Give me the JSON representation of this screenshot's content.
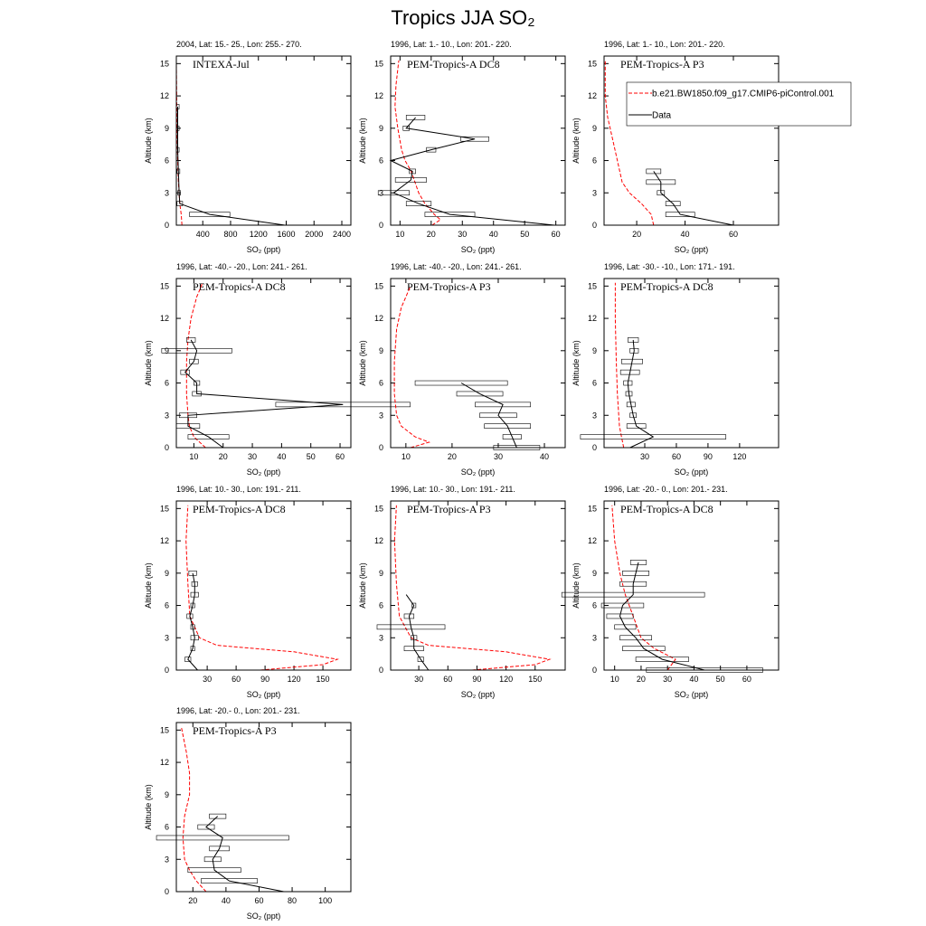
{
  "title": "Tropics JJA SO₂",
  "chart_data": [
    {
      "type": "line",
      "title": "2004, Lat: 15.- 25., Lon: 255.- 270.",
      "annotation": "INTEXA-Jul",
      "xlabel": "SO₂ (ppt)",
      "ylabel": "Altitude (km)",
      "xlim": [
        20,
        2530
      ],
      "xticks": [
        400,
        800,
        1200,
        1600,
        2000,
        2400
      ],
      "ylim": [
        0,
        15.7
      ],
      "yticks": [
        0,
        3,
        6,
        9,
        12,
        15
      ],
      "series": [
        {
          "color": "#ff0000",
          "dash": true,
          "x": [
            100,
            90,
            70,
            50,
            40,
            30,
            25,
            20
          ],
          "values": [
            0,
            1,
            2,
            4,
            6,
            9,
            12,
            15
          ]
        },
        {
          "color": "#000000",
          "x": [
            1580,
            500,
            70,
            60,
            50,
            40,
            40,
            40
          ],
          "values": [
            0,
            1,
            2,
            3,
            5,
            7,
            9,
            11
          ],
          "errors": [
            null,
            290,
            40,
            20,
            20,
            20,
            20,
            20
          ]
        }
      ]
    },
    {
      "type": "line",
      "title": "1996, Lat: 1.- 10., Lon: 201.- 220.",
      "annotation": "PEM-Tropics-A DC8",
      "xlabel": "SO₂ (ppt)",
      "ylabel": "Altitude (km)",
      "xlim": [
        7,
        63
      ],
      "xticks": [
        10,
        20,
        30,
        40,
        50,
        60
      ],
      "ylim": [
        0,
        15.7
      ],
      "yticks": [
        0,
        3,
        6,
        9,
        12,
        15
      ],
      "series": [
        {
          "color": "#ff0000",
          "dash": true,
          "x": [
            20.3,
            23,
            21,
            18,
            16,
            13.6,
            11.6,
            10.5,
            9.3,
            8.4,
            8.7,
            9.6
          ],
          "values": [
            0,
            0.5,
            1,
            2,
            3,
            5,
            6,
            7,
            9,
            11,
            13,
            15.3
          ]
        },
        {
          "color": "#000000",
          "x": [
            59.5,
            26,
            16,
            8,
            13.5,
            14,
            7,
            20,
            34,
            12,
            15
          ],
          "values": [
            0,
            1,
            2,
            3,
            4.2,
            5,
            6,
            7,
            8,
            9,
            10
          ],
          "errors": [
            null,
            8,
            4,
            5,
            5,
            1,
            null,
            1.5,
            4.5,
            1,
            3
          ]
        }
      ]
    },
    {
      "type": "line",
      "title": "1996, Lat: 1.- 10., Lon: 201.- 220.",
      "annotation": "PEM-Tropics-A P3",
      "xlabel": "SO₂ (ppt)",
      "ylabel": "Altitude (km)",
      "xlim": [
        6.5,
        78.7
      ],
      "xticks": [
        20,
        40,
        60
      ],
      "ylim": [
        0,
        15.7
      ],
      "yticks": [
        0,
        3,
        6,
        9,
        12,
        15
      ],
      "series": [
        {
          "name": "b.e21.BW1850.f09_g17.CMIP6-piControl.001",
          "color": "#ff0000",
          "dash": true,
          "x": [
            27,
            26,
            22,
            17,
            14,
            12,
            10,
            8,
            7,
            7
          ],
          "values": [
            0,
            1,
            2,
            3,
            4,
            6,
            8,
            10,
            12,
            15.3
          ]
        },
        {
          "name": "Data",
          "color": "#000000",
          "x": [
            60,
            38,
            35,
            30,
            30,
            27
          ],
          "values": [
            0,
            1,
            2,
            3,
            4,
            5
          ],
          "errors": [
            null,
            6,
            3,
            1.5,
            6,
            3
          ]
        }
      ]
    },
    {
      "type": "line",
      "title": "1996, Lat: -40.- -20., Lon: 241.- 261.",
      "annotation": "PEM-Tropics-A DC8",
      "xlabel": "SO₂ (ppt)",
      "ylabel": "Altitude (km)",
      "xlim": [
        4,
        63.7
      ],
      "xticks": [
        10,
        20,
        30,
        40,
        50,
        60
      ],
      "ylim": [
        0,
        15.7
      ],
      "yticks": [
        0,
        3,
        6,
        9,
        12,
        15
      ],
      "series": [
        {
          "color": "#ff0000",
          "dash": true,
          "x": [
            14,
            10,
            8.5,
            8,
            7.5,
            7.5,
            8,
            9,
            11,
            13
          ],
          "values": [
            0,
            1,
            2,
            3,
            5,
            8,
            10,
            12,
            14,
            15.3
          ]
        },
        {
          "color": "#000000",
          "x": [
            20,
            15,
            8,
            8,
            61,
            11,
            11,
            7,
            10,
            11,
            9
          ],
          "values": [
            0,
            1,
            2,
            3,
            4,
            5,
            6,
            7,
            8,
            9,
            10
          ],
          "errors": [
            null,
            7,
            4,
            3,
            23,
            1.5,
            1,
            1.5,
            1.5,
            12,
            1.5
          ]
        }
      ]
    },
    {
      "type": "line",
      "title": "1996, Lat: -40.- -20., Lon: 241.- 261.",
      "annotation": "PEM-Tropics-A P3",
      "xlabel": "SO₂ (ppt)",
      "ylabel": "Altitude (km)",
      "xlim": [
        6.7,
        44.5
      ],
      "xticks": [
        10,
        20,
        30,
        40
      ],
      "ylim": [
        0,
        15.7
      ],
      "yticks": [
        0,
        3,
        6,
        9,
        12,
        15
      ],
      "series": [
        {
          "color": "#ff0000",
          "dash": true,
          "x": [
            11,
            15,
            12,
            9,
            8,
            7.5,
            7.5,
            8,
            9,
            11
          ],
          "values": [
            0,
            0.5,
            1,
            2,
            3,
            5,
            8,
            11,
            13,
            15
          ]
        },
        {
          "color": "#000000",
          "x": [
            34,
            33,
            32,
            30,
            31,
            26,
            22
          ],
          "values": [
            0,
            1,
            2,
            3,
            4,
            5,
            6
          ],
          "errors": [
            5,
            2,
            5,
            4,
            6,
            5,
            10
          ]
        }
      ]
    },
    {
      "type": "line",
      "title": "1996, Lat: -30.- -10., Lon: 171.- 191.",
      "annotation": "PEM-Tropics-A DC8",
      "xlabel": "SO₂ (ppt)",
      "ylabel": "Altitude (km)",
      "xlim": [
        -8.6,
        157
      ],
      "xticks": [
        30,
        60,
        90,
        120
      ],
      "ylim": [
        0,
        15.7
      ],
      "yticks": [
        0,
        3,
        6,
        9,
        12,
        15
      ],
      "series": [
        {
          "color": "#ff0000",
          "dash": true,
          "x": [
            10,
            8,
            6,
            4,
            3,
            2,
            2
          ],
          "values": [
            0,
            1,
            2,
            5,
            8,
            12,
            15.3
          ]
        },
        {
          "color": "#000000",
          "x": [
            16,
            38,
            22,
            19,
            17,
            15,
            14,
            16,
            18,
            20,
            19
          ],
          "values": [
            0,
            1,
            2,
            3,
            4,
            5,
            6,
            7,
            8,
            9,
            10
          ],
          "errors": [
            null,
            69,
            9,
            3,
            4,
            3,
            4,
            9,
            10,
            4,
            5
          ]
        }
      ]
    },
    {
      "type": "line",
      "title": "1996, Lat: 10.- 30., Lon: 191.- 211.",
      "annotation": "PEM-Tropics-A DC8",
      "xlabel": "SO₂ (ppt)",
      "ylabel": "Altitude (km)",
      "xlim": [
        -2,
        179
      ],
      "xticks": [
        30,
        60,
        90,
        120,
        150
      ],
      "ylim": [
        0,
        15.7
      ],
      "yticks": [
        0,
        3,
        6,
        9,
        12,
        15
      ],
      "series": [
        {
          "color": "#ff0000",
          "dash": true,
          "x": [
            85,
            150,
            165,
            120,
            40,
            22,
            12,
            10,
            8,
            10
          ],
          "values": [
            0,
            0.5,
            1,
            1.7,
            2.3,
            3,
            5,
            8,
            12,
            15.3
          ]
        },
        {
          "color": "#000000",
          "x": [
            20,
            10,
            15,
            17,
            15,
            12,
            15,
            17,
            17,
            15
          ],
          "values": [
            0,
            1,
            2,
            3,
            4,
            5,
            6,
            7,
            8,
            9
          ],
          "errors": [
            null,
            3,
            2,
            4,
            2,
            3,
            2,
            4,
            3,
            4
          ]
        }
      ]
    },
    {
      "type": "line",
      "title": "1996, Lat: 10.- 30., Lon: 191.- 211.",
      "annotation": "PEM-Tropics-A P3",
      "xlabel": "SO₂ (ppt)",
      "ylabel": "Altitude (km)",
      "xlim": [
        1,
        181
      ],
      "xticks": [
        30,
        60,
        90,
        120,
        150
      ],
      "ylim": [
        0,
        15.7
      ],
      "yticks": [
        0,
        3,
        6,
        9,
        12,
        15
      ],
      "series": [
        {
          "color": "#ff0000",
          "dash": true,
          "x": [
            85,
            150,
            165,
            120,
            40,
            22,
            10,
            7,
            5,
            7
          ],
          "values": [
            0,
            0.5,
            1,
            1.7,
            2.3,
            3,
            5,
            8,
            12,
            15.3
          ]
        },
        {
          "color": "#000000",
          "x": [
            40,
            32,
            25,
            25,
            22,
            20,
            25,
            17
          ],
          "values": [
            0,
            1,
            2,
            3,
            4,
            5,
            6,
            7
          ],
          "errors": [
            null,
            3,
            10,
            3,
            35,
            5,
            2,
            null
          ]
        }
      ]
    },
    {
      "type": "line",
      "title": "1996, Lat: -20.- 0., Lon: 201.- 231.",
      "annotation": "PEM-Tropics-A DC8",
      "xlabel": "SO₂ (ppt)",
      "ylabel": "Altitude (km)",
      "xlim": [
        6,
        72
      ],
      "xticks": [
        10,
        20,
        30,
        40,
        50,
        60
      ],
      "ylim": [
        0,
        15.7
      ],
      "yticks": [
        0,
        3,
        6,
        9,
        12,
        15
      ],
      "series": [
        {
          "color": "#ff0000",
          "dash": true,
          "x": [
            30,
            33,
            25,
            20,
            17,
            14,
            12,
            10,
            9
          ],
          "values": [
            0,
            1,
            2,
            3,
            5,
            7,
            9,
            12,
            15.3
          ]
        },
        {
          "color": "#000000",
          "x": [
            44,
            28,
            21,
            18,
            14,
            12,
            13,
            17,
            17,
            18,
            19
          ],
          "values": [
            0,
            1,
            2,
            3,
            4,
            5,
            6,
            7,
            8,
            9,
            10
          ],
          "errors": [
            22,
            10,
            8,
            6,
            4,
            5,
            8,
            27,
            5,
            5,
            3
          ]
        }
      ]
    },
    {
      "type": "line",
      "title": "1996, Lat: -20.- 0., Lon: 201.- 231.",
      "annotation": "PEM-Tropics-A P3",
      "xlabel": "SO₂ (ppt)",
      "ylabel": "Altitude (km)",
      "xlim": [
        10,
        115.5
      ],
      "xticks": [
        20,
        40,
        60,
        80,
        100
      ],
      "ylim": [
        0,
        15.7
      ],
      "yticks": [
        0,
        3,
        6,
        9,
        12,
        15
      ],
      "series": [
        {
          "color": "#ff0000",
          "dash": true,
          "x": [
            28,
            22,
            18,
            15,
            14,
            15,
            18,
            18,
            16,
            13
          ],
          "values": [
            0,
            1,
            2,
            3,
            5,
            7,
            9,
            11,
            13,
            15.3
          ]
        },
        {
          "color": "#000000",
          "x": [
            75,
            42,
            33,
            32,
            36,
            38,
            28,
            35
          ],
          "values": [
            0,
            1,
            2,
            3,
            4,
            5,
            6,
            7
          ],
          "errors": [
            null,
            17,
            16,
            5,
            6,
            40,
            5,
            5
          ]
        }
      ]
    }
  ]
}
